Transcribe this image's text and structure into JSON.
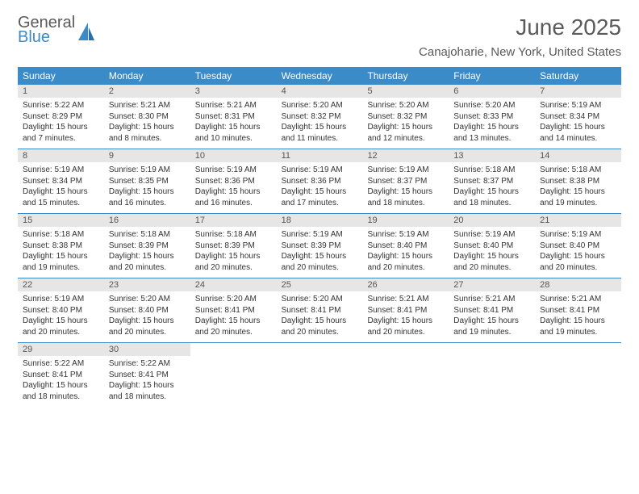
{
  "logo": {
    "general": "General",
    "blue": "Blue"
  },
  "title": "June 2025",
  "location": "Canajoharie, New York, United States",
  "colors": {
    "header_bg": "#3b8bc9",
    "daynum_bg": "#e6e6e6",
    "logo_gray": "#5a5a5a",
    "logo_blue": "#3b8bc9",
    "rule": "#3b8bc9"
  },
  "weekdays": [
    "Sunday",
    "Monday",
    "Tuesday",
    "Wednesday",
    "Thursday",
    "Friday",
    "Saturday"
  ],
  "weeks": [
    [
      {
        "n": "1",
        "sr": "5:22 AM",
        "ss": "8:29 PM",
        "dl": "15 hours and 7 minutes."
      },
      {
        "n": "2",
        "sr": "5:21 AM",
        "ss": "8:30 PM",
        "dl": "15 hours and 8 minutes."
      },
      {
        "n": "3",
        "sr": "5:21 AM",
        "ss": "8:31 PM",
        "dl": "15 hours and 10 minutes."
      },
      {
        "n": "4",
        "sr": "5:20 AM",
        "ss": "8:32 PM",
        "dl": "15 hours and 11 minutes."
      },
      {
        "n": "5",
        "sr": "5:20 AM",
        "ss": "8:32 PM",
        "dl": "15 hours and 12 minutes."
      },
      {
        "n": "6",
        "sr": "5:20 AM",
        "ss": "8:33 PM",
        "dl": "15 hours and 13 minutes."
      },
      {
        "n": "7",
        "sr": "5:19 AM",
        "ss": "8:34 PM",
        "dl": "15 hours and 14 minutes."
      }
    ],
    [
      {
        "n": "8",
        "sr": "5:19 AM",
        "ss": "8:34 PM",
        "dl": "15 hours and 15 minutes."
      },
      {
        "n": "9",
        "sr": "5:19 AM",
        "ss": "8:35 PM",
        "dl": "15 hours and 16 minutes."
      },
      {
        "n": "10",
        "sr": "5:19 AM",
        "ss": "8:36 PM",
        "dl": "15 hours and 16 minutes."
      },
      {
        "n": "11",
        "sr": "5:19 AM",
        "ss": "8:36 PM",
        "dl": "15 hours and 17 minutes."
      },
      {
        "n": "12",
        "sr": "5:19 AM",
        "ss": "8:37 PM",
        "dl": "15 hours and 18 minutes."
      },
      {
        "n": "13",
        "sr": "5:18 AM",
        "ss": "8:37 PM",
        "dl": "15 hours and 18 minutes."
      },
      {
        "n": "14",
        "sr": "5:18 AM",
        "ss": "8:38 PM",
        "dl": "15 hours and 19 minutes."
      }
    ],
    [
      {
        "n": "15",
        "sr": "5:18 AM",
        "ss": "8:38 PM",
        "dl": "15 hours and 19 minutes."
      },
      {
        "n": "16",
        "sr": "5:18 AM",
        "ss": "8:39 PM",
        "dl": "15 hours and 20 minutes."
      },
      {
        "n": "17",
        "sr": "5:18 AM",
        "ss": "8:39 PM",
        "dl": "15 hours and 20 minutes."
      },
      {
        "n": "18",
        "sr": "5:19 AM",
        "ss": "8:39 PM",
        "dl": "15 hours and 20 minutes."
      },
      {
        "n": "19",
        "sr": "5:19 AM",
        "ss": "8:40 PM",
        "dl": "15 hours and 20 minutes."
      },
      {
        "n": "20",
        "sr": "5:19 AM",
        "ss": "8:40 PM",
        "dl": "15 hours and 20 minutes."
      },
      {
        "n": "21",
        "sr": "5:19 AM",
        "ss": "8:40 PM",
        "dl": "15 hours and 20 minutes."
      }
    ],
    [
      {
        "n": "22",
        "sr": "5:19 AM",
        "ss": "8:40 PM",
        "dl": "15 hours and 20 minutes."
      },
      {
        "n": "23",
        "sr": "5:20 AM",
        "ss": "8:40 PM",
        "dl": "15 hours and 20 minutes."
      },
      {
        "n": "24",
        "sr": "5:20 AM",
        "ss": "8:41 PM",
        "dl": "15 hours and 20 minutes."
      },
      {
        "n": "25",
        "sr": "5:20 AM",
        "ss": "8:41 PM",
        "dl": "15 hours and 20 minutes."
      },
      {
        "n": "26",
        "sr": "5:21 AM",
        "ss": "8:41 PM",
        "dl": "15 hours and 20 minutes."
      },
      {
        "n": "27",
        "sr": "5:21 AM",
        "ss": "8:41 PM",
        "dl": "15 hours and 19 minutes."
      },
      {
        "n": "28",
        "sr": "5:21 AM",
        "ss": "8:41 PM",
        "dl": "15 hours and 19 minutes."
      }
    ],
    [
      {
        "n": "29",
        "sr": "5:22 AM",
        "ss": "8:41 PM",
        "dl": "15 hours and 18 minutes."
      },
      {
        "n": "30",
        "sr": "5:22 AM",
        "ss": "8:41 PM",
        "dl": "15 hours and 18 minutes."
      },
      null,
      null,
      null,
      null,
      null
    ]
  ],
  "labels": {
    "sunrise": "Sunrise:",
    "sunset": "Sunset:",
    "daylight": "Daylight:"
  }
}
